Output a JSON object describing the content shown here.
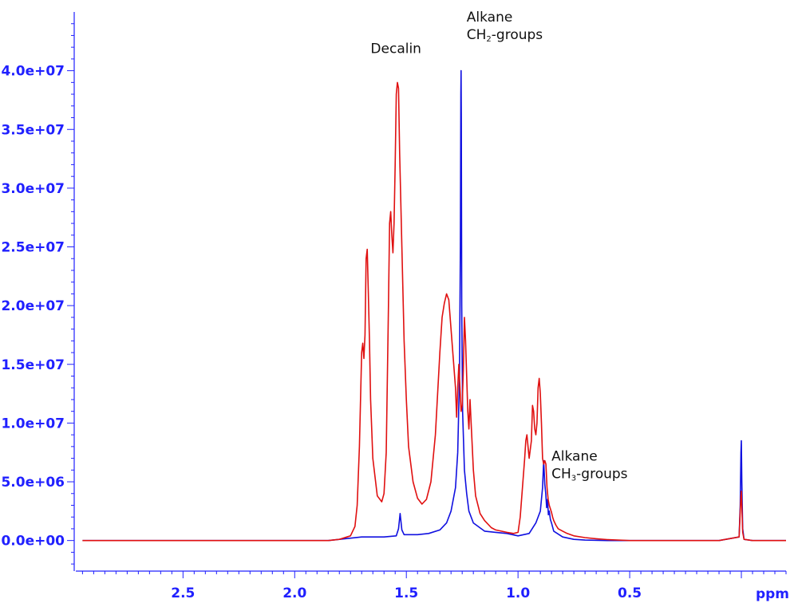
{
  "chart_data": {
    "type": "line",
    "xlabel": "ppm",
    "ylabel": "",
    "x_reversed": true,
    "xlim": [
      2.98,
      -0.2
    ],
    "ylim": [
      -2400000,
      45000000
    ],
    "x_ticks": [
      2.5,
      2.0,
      1.5,
      1.0,
      0.5
    ],
    "x_tick_labels": [
      "2.5",
      "2.0",
      "1.5",
      "1.0",
      "0.5"
    ],
    "y_ticks": [
      0,
      5000000,
      10000000,
      15000000,
      20000000,
      25000000,
      30000000,
      35000000,
      40000000
    ],
    "y_tick_labels": [
      "0.0e+00",
      "5.0e+06",
      "1.0e+07",
      "1.5e+07",
      "2.0e+07",
      "2.5e+07",
      "3.0e+07",
      "3.5e+07",
      "4.0e+07"
    ],
    "grid": false,
    "axis_color": "#2020ff",
    "series": [
      {
        "color": "#1010e0",
        "x": [
          2.95,
          1.85,
          1.7,
          1.6,
          1.545,
          1.535,
          1.528,
          1.52,
          1.51,
          1.5,
          1.45,
          1.4,
          1.35,
          1.32,
          1.3,
          1.28,
          1.27,
          1.262,
          1.258,
          1.256,
          1.255,
          1.254,
          1.252,
          1.248,
          1.24,
          1.23,
          1.22,
          1.2,
          1.15,
          1.1,
          1.05,
          1.0,
          0.95,
          0.92,
          0.9,
          0.89,
          0.885,
          0.88,
          0.876,
          0.872,
          0.868,
          0.864,
          0.86,
          0.855,
          0.85,
          0.84,
          0.8,
          0.75,
          0.7,
          0.6,
          0.5,
          0.3,
          0.1,
          0.01,
          0.005,
          0.002,
          0.0,
          -0.002,
          -0.006,
          -0.012,
          -0.05,
          -0.2
        ],
        "y": [
          0,
          0,
          300000,
          300000,
          400000,
          1000000,
          2300000,
          900000,
          500000,
          500000,
          500000,
          600000,
          900000,
          1500000,
          2500000,
          4500000,
          7500000,
          14000000,
          25000000,
          38000000,
          40000000,
          36000000,
          20000000,
          11000000,
          6000000,
          4000000,
          2500000,
          1500000,
          800000,
          700000,
          600000,
          400000,
          600000,
          1500000,
          2500000,
          4500000,
          6800000,
          4800000,
          4000000,
          2800000,
          3500000,
          2200000,
          2500000,
          1800000,
          1500000,
          800000,
          300000,
          100000,
          40000,
          0,
          0,
          0,
          0,
          300000,
          3000000,
          7500000,
          8500000,
          5000000,
          1000000,
          100000,
          0,
          0
        ]
      },
      {
        "color": "#e01010",
        "x": [
          2.95,
          1.85,
          1.8,
          1.75,
          1.73,
          1.72,
          1.71,
          1.7,
          1.695,
          1.69,
          1.685,
          1.68,
          1.675,
          1.67,
          1.665,
          1.66,
          1.65,
          1.63,
          1.61,
          1.6,
          1.59,
          1.58,
          1.575,
          1.57,
          1.565,
          1.56,
          1.555,
          1.55,
          1.545,
          1.54,
          1.535,
          1.53,
          1.52,
          1.51,
          1.5,
          1.49,
          1.47,
          1.45,
          1.43,
          1.41,
          1.39,
          1.37,
          1.35,
          1.34,
          1.33,
          1.32,
          1.31,
          1.3,
          1.29,
          1.28,
          1.275,
          1.27,
          1.265,
          1.26,
          1.255,
          1.25,
          1.245,
          1.24,
          1.235,
          1.23,
          1.225,
          1.22,
          1.215,
          1.21,
          1.2,
          1.19,
          1.17,
          1.15,
          1.12,
          1.1,
          1.05,
          1.02,
          1.0,
          0.99,
          0.98,
          0.97,
          0.965,
          0.96,
          0.955,
          0.95,
          0.94,
          0.935,
          0.93,
          0.925,
          0.92,
          0.915,
          0.91,
          0.905,
          0.9,
          0.895,
          0.89,
          0.885,
          0.88,
          0.875,
          0.87,
          0.865,
          0.86,
          0.855,
          0.85,
          0.845,
          0.84,
          0.83,
          0.82,
          0.8,
          0.78,
          0.75,
          0.7,
          0.65,
          0.6,
          0.5,
          0.3,
          0.1,
          0.01,
          0.005,
          0.002,
          0.0,
          -0.002,
          -0.006,
          -0.012,
          -0.05,
          -0.2
        ],
        "y": [
          0,
          0,
          100000,
          400000,
          1200000,
          3000000,
          8000000,
          16000000,
          16800000,
          15500000,
          17500000,
          24000000,
          24800000,
          21000000,
          17000000,
          12000000,
          7000000,
          3800000,
          3300000,
          4000000,
          7500000,
          20000000,
          27000000,
          28000000,
          26000000,
          24500000,
          27000000,
          32000000,
          38000000,
          39000000,
          38500000,
          33000000,
          25000000,
          17000000,
          12000000,
          8000000,
          5000000,
          3600000,
          3100000,
          3500000,
          5000000,
          9000000,
          16000000,
          19000000,
          20200000,
          21000000,
          20500000,
          18000000,
          15500000,
          13000000,
          10500000,
          13000000,
          15000000,
          13000000,
          11000000,
          11500000,
          14500000,
          19000000,
          17000000,
          14000000,
          11000000,
          9500000,
          12000000,
          10000000,
          6000000,
          3800000,
          2300000,
          1700000,
          1100000,
          900000,
          700000,
          600000,
          700000,
          2000000,
          4500000,
          7000000,
          8500000,
          9000000,
          8000000,
          7000000,
          8500000,
          11500000,
          11000000,
          9500000,
          9000000,
          10000000,
          13000000,
          13800000,
          12500000,
          10000000,
          7000000,
          6500000,
          6800000,
          6500000,
          4500000,
          3500000,
          3000000,
          2700000,
          2400000,
          2000000,
          1700000,
          1300000,
          1000000,
          800000,
          600000,
          400000,
          250000,
          150000,
          80000,
          0,
          0,
          0,
          300000,
          2500000,
          3800000,
          4200000,
          3000000,
          700000,
          100000,
          0,
          0
        ]
      }
    ],
    "annotations": [
      {
        "id": "decalin",
        "text": "Decalin",
        "x": 1.66,
        "y": 41500000
      },
      {
        "id": "ch2",
        "line1": "Alkane",
        "line2_main": "CH",
        "line2_sub": "2",
        "line2_tail": "-groups",
        "x": 1.23,
        "y": 44200000
      },
      {
        "id": "ch3",
        "line1": "Alkane",
        "line2_main": "CH",
        "line2_sub": "3",
        "line2_tail": "-groups",
        "x": 0.85,
        "y": 6800000
      }
    ]
  }
}
